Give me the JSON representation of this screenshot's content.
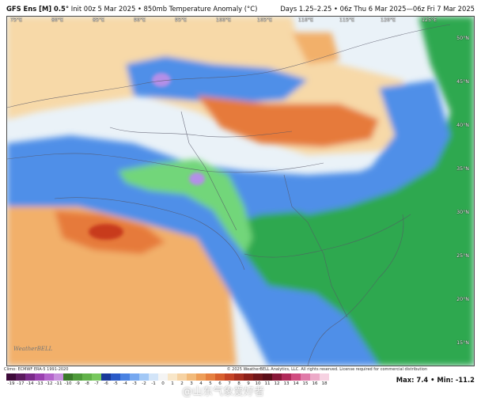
{
  "header": {
    "model": "GFS Ens [M] 0.5°",
    "init": "Init 00z 5 Mar 2025",
    "field": "850mb Temperature Anomaly (°C)",
    "valid": "Days 1.25–2.25 • 06z Thu 6 Mar 2025—06z Fri 7 Mar 2025"
  },
  "map": {
    "longitude_labels": [
      "75°E",
      "80°E",
      "85°E",
      "90°E",
      "95°E",
      "100°E",
      "105°E",
      "110°E",
      "115°E",
      "120°E",
      "125°E"
    ],
    "latitude_labels": [
      "50°N",
      "45°N",
      "40°N",
      "35°N",
      "30°N",
      "25°N",
      "20°N",
      "15°N"
    ],
    "logo_text": "WeatherBELL",
    "colors": {
      "very_cold": "#7b3fb4",
      "cold_extreme": "#b48fe8",
      "cold_strong": "#2fa84f",
      "cold_moderate": "#72d67a",
      "cold_light": "#1f64d6",
      "cool": "#4f8fe8",
      "slight_cool": "#a8cdf5",
      "neutral": "#eaf2f8",
      "slight_warm": "#f7d9a8",
      "warm": "#f2b06b",
      "warm_strong": "#e67a3a",
      "hot": "#c83a1e",
      "borders": "#555566"
    }
  },
  "footer": {
    "climo": "Climo: ECMWF ERA-5 1991-2020",
    "copyright": "© 2025 WeatherBELL Analytics, LLC. All rights reserved. License required for commercial distribution",
    "max_label": "Max: 7.4",
    "min_label": "Min: -11.2",
    "watermark": "@山东气象爱好者",
    "colorbar": {
      "ticks": [
        "-19",
        "-17",
        "-14",
        "-13",
        "-12",
        "-11",
        "-10",
        "-9",
        "-8",
        "-7",
        "-6",
        "-5",
        "-4",
        "-3",
        "-2",
        "-1",
        "0",
        "1",
        "2",
        "3",
        "4",
        "5",
        "6",
        "7",
        "8",
        "9",
        "10",
        "11",
        "12",
        "13",
        "14",
        "15",
        "16",
        "18"
      ],
      "colors": [
        "#3d0a3a",
        "#5a1a5e",
        "#7a2a8a",
        "#9a40b0",
        "#b465cc",
        "#c890de",
        "#3a7a2a",
        "#4e9a3a",
        "#62b24a",
        "#78c85e",
        "#1a3a9a",
        "#2a5ac8",
        "#4a82e2",
        "#76a8f0",
        "#a2c8f6",
        "#d2e4f8",
        "#f4f4f4",
        "#f8e6c8",
        "#f6d2a2",
        "#f2ba7a",
        "#ee9e58",
        "#e68040",
        "#d8602e",
        "#c44426",
        "#a83020",
        "#8c201a",
        "#70161a",
        "#5a0e18",
        "#881838",
        "#b02a5a",
        "#d04c80",
        "#e07aa8",
        "#ecaac8",
        "#f6d2e2"
      ]
    }
  }
}
